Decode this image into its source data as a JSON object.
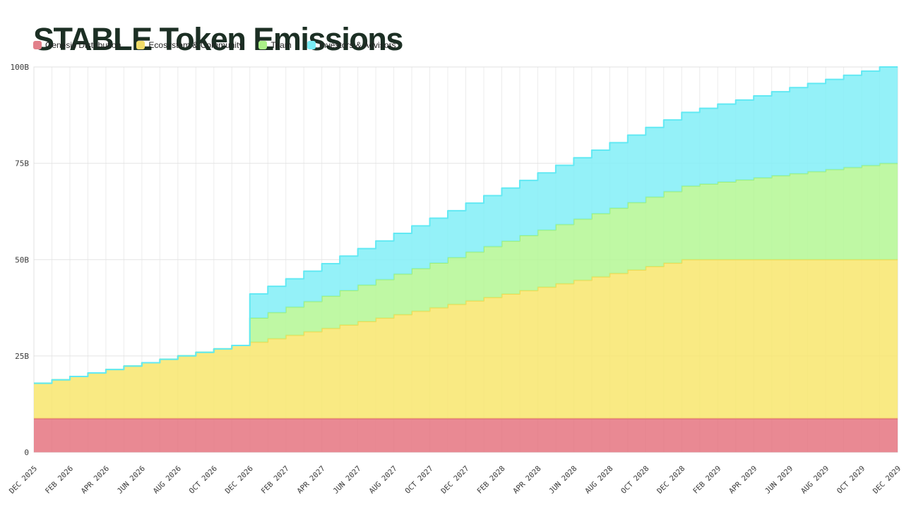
{
  "title": "STABLE Token Emissions",
  "colors": {
    "title": "#1c2f24",
    "axis_text": "#3a3a3a",
    "grid_vertical": "#ececec",
    "grid_horizontal": "#e4e4e4",
    "plot_border": "#e0e0e0",
    "background": "#ffffff"
  },
  "legend": {
    "items": [
      {
        "label": "Genesis Distribution",
        "color": "#e2808a"
      },
      {
        "label": "Ecosystem & Community",
        "color": "#f1dc69"
      },
      {
        "label": "Team",
        "color": "#abf189"
      },
      {
        "label": "Investors & Advisors",
        "color": "#79edf5"
      }
    ]
  },
  "y_axis": {
    "ticks": [
      {
        "label": "0",
        "value": 0
      },
      {
        "label": "25B",
        "value": 25
      },
      {
        "label": "50B",
        "value": 50
      },
      {
        "label": "75B",
        "value": 75
      },
      {
        "label": "100B",
        "value": 100
      }
    ]
  },
  "x_axis": {
    "tick_labels": [
      "DEC 2025",
      "FEB 2026",
      "APR 2026",
      "JUN 2026",
      "AUG 2026",
      "OCT 2026",
      "DEC 2026",
      "FEB 2027",
      "APR 2027",
      "JUN 2027",
      "AUG 2027",
      "OCT 2027",
      "DEC 2027",
      "FEB 2028",
      "APR 2028",
      "JUN 2028",
      "AUG 2028",
      "OCT 2028",
      "DEC 2028",
      "FEB 2029",
      "APR 2029",
      "JUN 2029",
      "AUG 2029",
      "OCT 2029",
      "DEC 2029"
    ],
    "tick_every_n_months": 2
  },
  "chart_data": {
    "type": "area",
    "stacked": true,
    "interpolation": "step-after",
    "title": "STABLE Token Emissions",
    "unit": "billions of tokens",
    "ylim": [
      0,
      100
    ],
    "grid": "monthly vertical lines, horizontal lines every 25B",
    "legend_position": "top-left",
    "x": [
      "DEC 2025",
      "JAN 2026",
      "FEB 2026",
      "MAR 2026",
      "APR 2026",
      "MAY 2026",
      "JUN 2026",
      "JUL 2026",
      "AUG 2026",
      "SEP 2026",
      "OCT 2026",
      "NOV 2026",
      "DEC 2026",
      "JAN 2027",
      "FEB 2027",
      "MAR 2027",
      "APR 2027",
      "MAY 2027",
      "JUN 2027",
      "JUL 2027",
      "AUG 2027",
      "SEP 2027",
      "OCT 2027",
      "NOV 2027",
      "DEC 2027",
      "JAN 2028",
      "FEB 2028",
      "MAR 2028",
      "APR 2028",
      "MAY 2028",
      "JUN 2028",
      "JUL 2028",
      "AUG 2028",
      "SEP 2028",
      "OCT 2028",
      "NOV 2028",
      "DEC 2028",
      "JAN 2029",
      "FEB 2029",
      "MAR 2029",
      "APR 2029",
      "MAY 2029",
      "JUN 2029",
      "JUL 2029",
      "AUG 2029",
      "SEP 2029",
      "OCT 2029",
      "NOV 2029",
      "DEC 2029"
    ],
    "series": [
      {
        "name": "Genesis Distribution",
        "fill": "#e57480",
        "stroke": "#e06a76",
        "values": [
          8.75,
          8.75,
          8.75,
          8.75,
          8.75,
          8.75,
          8.75,
          8.75,
          8.75,
          8.75,
          8.75,
          8.75,
          8.75,
          8.75,
          8.75,
          8.75,
          8.75,
          8.75,
          8.75,
          8.75,
          8.75,
          8.75,
          8.75,
          8.75,
          8.75,
          8.75,
          8.75,
          8.75,
          8.75,
          8.75,
          8.75,
          8.75,
          8.75,
          8.75,
          8.75,
          8.75,
          8.75,
          8.75,
          8.75,
          8.75,
          8.75,
          8.75,
          8.75,
          8.75,
          8.75,
          8.75,
          8.75,
          8.75,
          8.75
        ]
      },
      {
        "name": "Ecosystem & Community",
        "fill": "#f8e66d",
        "stroke": "#f2da55",
        "values": [
          9.15,
          10.04,
          10.93,
          11.83,
          12.72,
          13.61,
          14.5,
          15.39,
          16.28,
          17.18,
          18.07,
          18.96,
          19.85,
          20.74,
          21.63,
          22.53,
          23.42,
          24.31,
          25.2,
          26.09,
          26.98,
          27.88,
          28.77,
          29.66,
          30.55,
          31.44,
          32.33,
          33.23,
          34.12,
          35.01,
          35.9,
          36.79,
          37.68,
          38.58,
          39.47,
          40.36,
          41.25,
          41.25,
          41.25,
          41.25,
          41.25,
          41.25,
          41.25,
          41.25,
          41.25,
          41.25,
          41.25,
          41.25,
          41.25
        ]
      },
      {
        "name": "Team",
        "fill": "#b4f794",
        "stroke": "#a0f07c",
        "values": [
          0,
          0,
          0,
          0,
          0,
          0,
          0,
          0,
          0,
          0,
          0,
          0,
          6.25,
          6.79,
          7.32,
          7.86,
          8.39,
          8.93,
          9.46,
          10.0,
          10.54,
          11.07,
          11.61,
          12.14,
          12.68,
          13.21,
          13.75,
          14.29,
          14.82,
          15.36,
          15.89,
          16.43,
          16.96,
          17.5,
          18.04,
          18.57,
          19.11,
          19.64,
          20.18,
          20.71,
          21.25,
          21.79,
          22.32,
          22.86,
          23.39,
          23.93,
          24.46,
          25.0,
          25.0
        ]
      },
      {
        "name": "Investors & Advisors",
        "fill": "#81eff7",
        "stroke": "#62e9f3",
        "values": [
          0,
          0,
          0,
          0,
          0,
          0,
          0,
          0,
          0,
          0,
          0,
          0,
          6.25,
          6.79,
          7.32,
          7.86,
          8.39,
          8.93,
          9.46,
          10.0,
          10.54,
          11.07,
          11.61,
          12.14,
          12.68,
          13.21,
          13.75,
          14.29,
          14.82,
          15.36,
          15.89,
          16.43,
          16.96,
          17.5,
          18.04,
          18.57,
          19.11,
          19.64,
          20.18,
          20.71,
          21.25,
          21.79,
          22.32,
          22.86,
          23.39,
          23.93,
          24.46,
          25.0,
          25.0
        ]
      }
    ]
  }
}
